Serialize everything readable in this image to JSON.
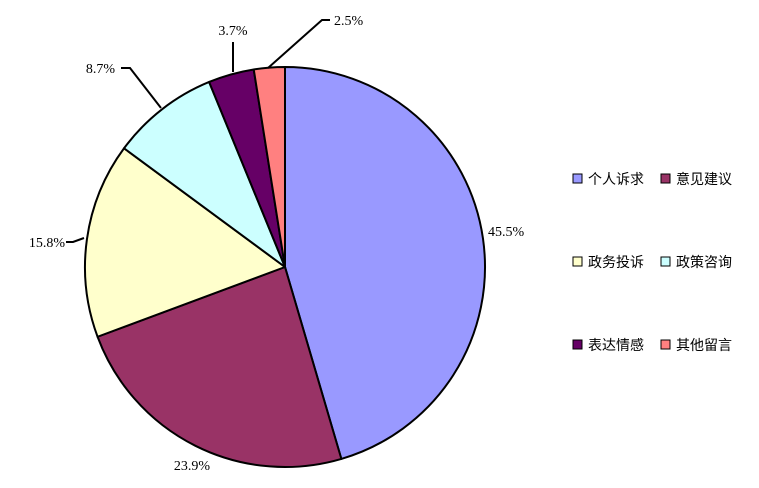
{
  "chart_data": {
    "type": "pie",
    "title": "",
    "start_angle_deg": 0,
    "direction": "clockwise",
    "legend_placement": "right",
    "slices": [
      {
        "label": "个人诉求",
        "value": 45.5,
        "display": "45.5%",
        "color": "#9999FF"
      },
      {
        "label": "意见建议",
        "value": 23.9,
        "display": "23.9%",
        "color": "#993366"
      },
      {
        "label": "政务投诉",
        "value": 15.8,
        "display": "15.8%",
        "color": "#FFFFCC"
      },
      {
        "label": "政策咨询",
        "value": 8.7,
        "display": "8.7%",
        "color": "#CCFFFF"
      },
      {
        "label": "表达情感",
        "value": 3.7,
        "display": "3.7%",
        "color": "#660066"
      },
      {
        "label": "其他留言",
        "value": 2.5,
        "display": "2.5%",
        "color": "#FF8080"
      }
    ]
  }
}
